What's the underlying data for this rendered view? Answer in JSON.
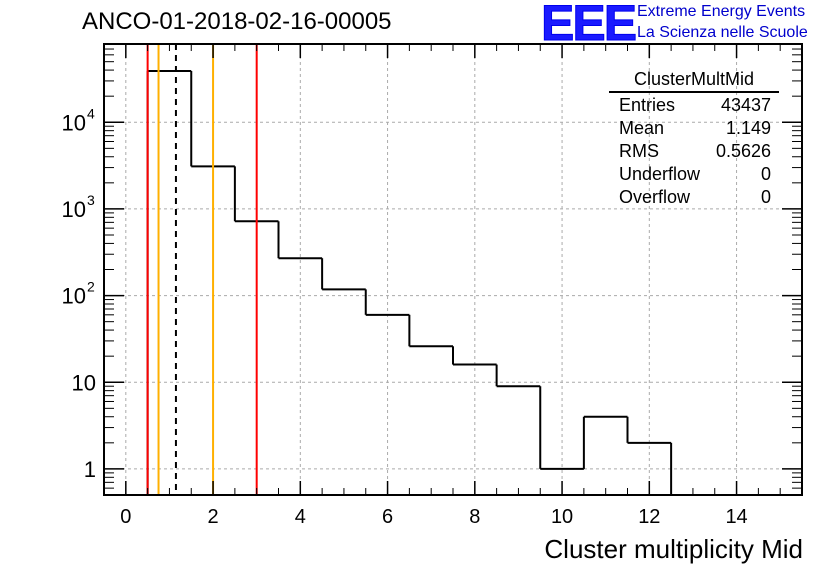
{
  "title": "ANCO-01-2018-02-16-00005",
  "logo": {
    "text": "EEE",
    "line1": "Extreme Energy Events",
    "line2": "La Scienza nelle Scuole",
    "color": "#0000ee"
  },
  "stats_box": {
    "name": "ClusterMultMid",
    "rows": [
      {
        "label": "Entries",
        "value": "43437"
      },
      {
        "label": "Mean",
        "value": "1.149"
      },
      {
        "label": "RMS",
        "value": "0.5626"
      },
      {
        "label": "Underflow",
        "value": "0"
      },
      {
        "label": "Overflow",
        "value": "0"
      }
    ]
  },
  "chart_data": {
    "type": "histogram",
    "title": "ANCO-01-2018-02-16-00005",
    "xlabel": "Cluster multiplicity Mid",
    "ylabel": "",
    "yscale": "log",
    "xlim": [
      -0.5,
      15.5
    ],
    "ylim": [
      0.5,
      80000
    ],
    "grid": true,
    "bins": [
      {
        "low": 0.5,
        "high": 1.5,
        "count": 39000
      },
      {
        "low": 1.5,
        "high": 2.5,
        "count": 3100
      },
      {
        "low": 2.5,
        "high": 3.5,
        "count": 720
      },
      {
        "low": 3.5,
        "high": 4.5,
        "count": 270
      },
      {
        "low": 4.5,
        "high": 5.5,
        "count": 118
      },
      {
        "low": 5.5,
        "high": 6.5,
        "count": 60
      },
      {
        "low": 6.5,
        "high": 7.5,
        "count": 26
      },
      {
        "low": 7.5,
        "high": 8.5,
        "count": 16
      },
      {
        "low": 8.5,
        "high": 9.5,
        "count": 9
      },
      {
        "low": 9.5,
        "high": 10.5,
        "count": 1
      },
      {
        "low": 10.5,
        "high": 11.5,
        "count": 4
      },
      {
        "low": 11.5,
        "high": 12.5,
        "count": 2
      }
    ],
    "xticks": [
      0,
      2,
      4,
      6,
      8,
      10,
      12,
      14
    ],
    "xtick_labels": [
      "0",
      "2",
      "4",
      "6",
      "8",
      "10",
      "12",
      "14"
    ],
    "yticks": [
      1,
      10,
      100,
      1000,
      10000
    ],
    "ytick_labels": [
      {
        "base": "1",
        "exp": ""
      },
      {
        "base": "10",
        "exp": ""
      },
      {
        "base": "10",
        "exp": "2"
      },
      {
        "base": "10",
        "exp": "3"
      },
      {
        "base": "10",
        "exp": "4"
      }
    ],
    "vlines": [
      {
        "x": 0.5,
        "color": "#ff0000",
        "style": "solid"
      },
      {
        "x": 0.75,
        "color": "#ffb000",
        "style": "solid"
      },
      {
        "x": 1.149,
        "color": "#000000",
        "style": "dashed"
      },
      {
        "x": 2.0,
        "color": "#ffb000",
        "style": "solid"
      },
      {
        "x": 3.0,
        "color": "#ff0000",
        "style": "solid"
      }
    ]
  }
}
